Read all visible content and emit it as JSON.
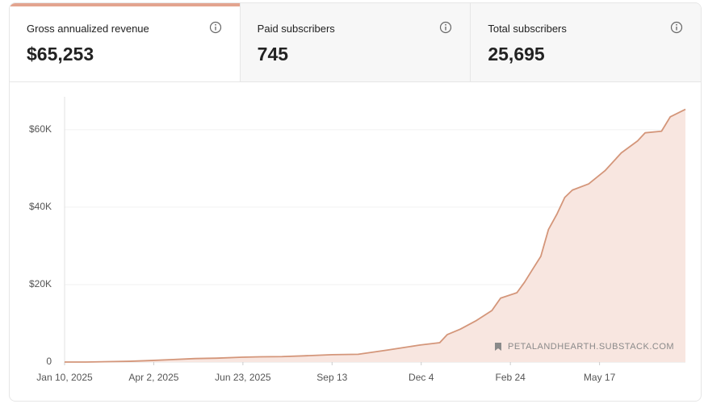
{
  "tabs": [
    {
      "label": "Gross annualized revenue",
      "value": "$65,253"
    },
    {
      "label": "Paid subscribers",
      "value": "745"
    },
    {
      "label": "Total subscribers",
      "value": "25,695"
    }
  ],
  "chart_data": {
    "type": "area",
    "x": [
      0,
      20,
      40,
      60,
      80,
      96,
      120,
      140,
      163,
      180,
      200,
      220,
      246,
      270,
      297,
      312,
      327,
      345,
      352,
      364,
      378,
      393,
      401,
      416,
      423,
      430,
      438,
      445,
      453,
      460,
      467,
      482,
      497,
      512,
      527,
      534,
      549,
      557,
      571
    ],
    "values": [
      0,
      0,
      100,
      200,
      400,
      600,
      900,
      1000,
      1250,
      1350,
      1400,
      1600,
      1900,
      2000,
      3100,
      3750,
      4400,
      5000,
      7100,
      8500,
      10600,
      13300,
      16500,
      17900,
      20600,
      23750,
      27300,
      34200,
      38300,
      42500,
      44400,
      46000,
      49400,
      54000,
      57100,
      59200,
      59600,
      63300,
      65253
    ],
    "color": "#d4967a",
    "fill": "#f8e6e0",
    "xlim": [
      0,
      571
    ],
    "xticks": [
      {
        "value": 0,
        "label": "Jan 10, 2025"
      },
      {
        "value": 82,
        "label": "Apr 2, 2025"
      },
      {
        "value": 164,
        "label": "Jun 23, 2025"
      },
      {
        "value": 246,
        "label": "Sep 13"
      },
      {
        "value": 328,
        "label": "Dec 4"
      },
      {
        "value": 410,
        "label": "Feb 24"
      },
      {
        "value": 492,
        "label": "May 17"
      }
    ],
    "ylim": [
      0,
      68500
    ],
    "yticks": [
      0,
      {
        "value": 20000,
        "label": "$20K"
      },
      {
        "value": 40000,
        "label": "$40K"
      },
      {
        "value": 60000,
        "label": "$60K"
      }
    ],
    "grid": true,
    "annotation": "PETALANDHEARTH.SUBSTACK.COM"
  }
}
